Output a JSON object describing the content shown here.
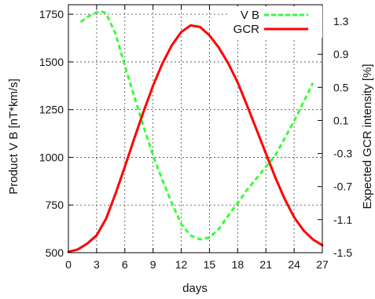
{
  "chart_data": {
    "type": "line",
    "xlabel": "days",
    "ylabel": "Product V B [nT*km/s]",
    "y2label": "Expected GCR intensity [%]",
    "xlim": [
      0,
      27
    ],
    "ylim": [
      500,
      1800
    ],
    "y2lim": [
      -1.5,
      1.5
    ],
    "x_ticks": [
      "0",
      "3",
      "6",
      "9",
      "12",
      "15",
      "18",
      "21",
      "24",
      "27"
    ],
    "y_ticks": [
      "500",
      "750",
      "1000",
      "1250",
      "1500",
      "1750"
    ],
    "y2_ticks": [
      "-1.5",
      "-1.1",
      "-0.7",
      "-0.3",
      "0.1",
      "0.5",
      "0.9",
      "1.3"
    ],
    "grid": true,
    "legend_position": "top-right",
    "series": [
      {
        "name": "V B",
        "axis": "left",
        "color": "#33ff33",
        "style": "dashed",
        "x": [
          1.3,
          2,
          3,
          3.5,
          4,
          5,
          6,
          7,
          8,
          9,
          10,
          11,
          12,
          13,
          14,
          15,
          16,
          17,
          18,
          19,
          20,
          21,
          22,
          23,
          24,
          25,
          26
        ],
        "y": [
          1710,
          1735,
          1760,
          1765,
          1755,
          1650,
          1480,
          1320,
          1160,
          1010,
          880,
          760,
          650,
          590,
          570,
          580,
          625,
          695,
          760,
          830,
          890,
          950,
          1010,
          1100,
          1190,
          1290,
          1390
        ]
      },
      {
        "name": "GCR",
        "axis": "right",
        "color": "#ff0000",
        "style": "solid",
        "x": [
          0,
          1,
          2,
          3,
          4,
          5,
          6,
          7,
          8,
          9,
          10,
          11,
          12,
          13,
          14,
          15,
          16,
          17,
          18,
          19,
          20,
          21,
          22,
          23,
          24,
          25,
          26,
          27
        ],
        "y": [
          -1.49,
          -1.46,
          -1.39,
          -1.29,
          -1.09,
          -0.79,
          -0.46,
          -0.12,
          0.21,
          0.52,
          0.79,
          1.01,
          1.17,
          1.25,
          1.23,
          1.13,
          0.98,
          0.79,
          0.56,
          0.28,
          -0.01,
          -0.3,
          -0.59,
          -0.85,
          -1.07,
          -1.23,
          -1.34,
          -1.41
        ]
      }
    ]
  }
}
